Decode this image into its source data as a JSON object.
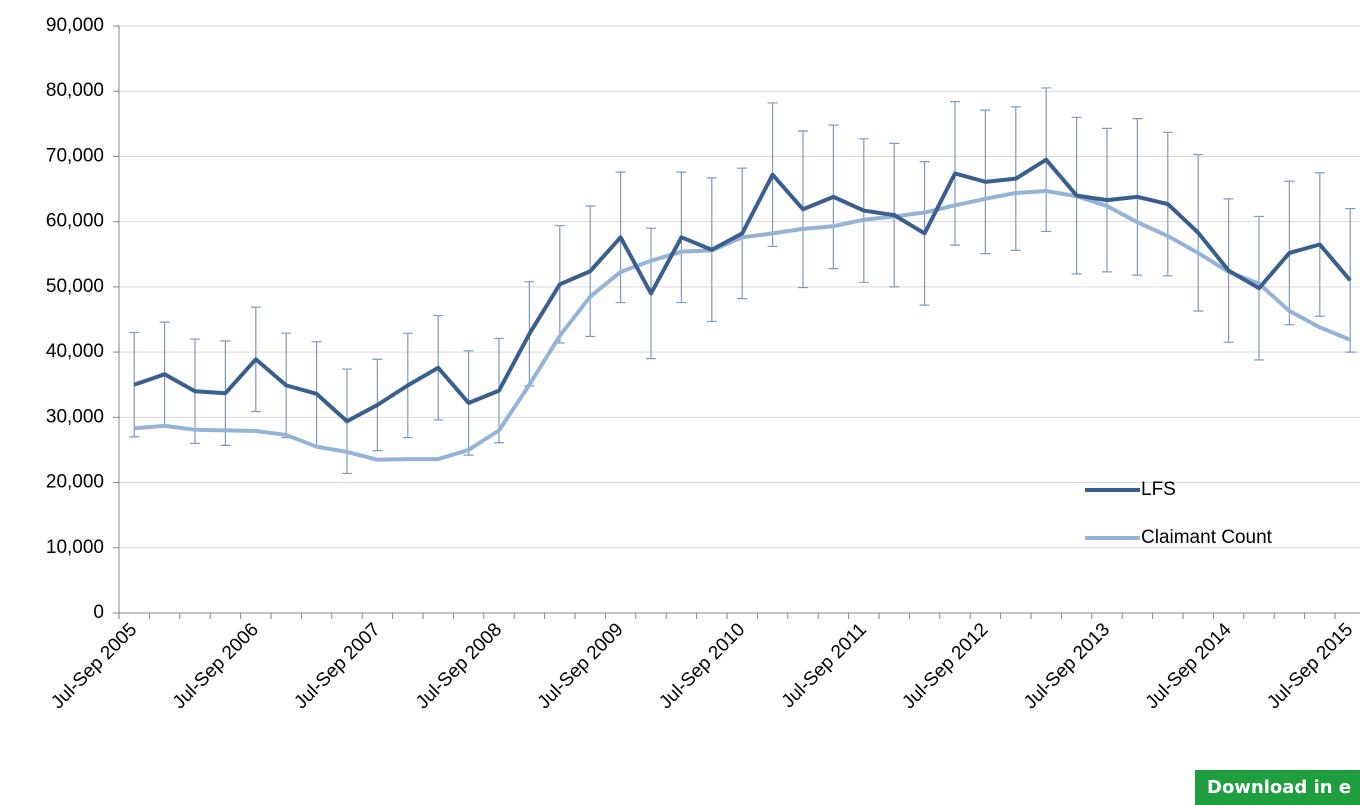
{
  "chart_data": {
    "type": "line",
    "categories": [
      "Jul-Sep 2005",
      null,
      null,
      null,
      "Jul-Sep 2006",
      null,
      null,
      null,
      "Jul-Sep 2007",
      null,
      null,
      null,
      "Jul-Sep 2008",
      null,
      null,
      null,
      "Jul-Sep 2009",
      null,
      null,
      null,
      "Jul-Sep 2010",
      null,
      null,
      null,
      "Jul-Sep 2011",
      null,
      null,
      null,
      "Jul-Sep 2012",
      null,
      null,
      null,
      "Jul-Sep 2013",
      null,
      null,
      null,
      "Jul-Sep 2014",
      null,
      null,
      null,
      "Jul-Sep 2015"
    ],
    "series": [
      {
        "name": "LFS",
        "color": "#3a5f8e",
        "values": [
          35000,
          36600,
          34000,
          33700,
          38900,
          34900,
          33600,
          29400,
          31900,
          34900,
          37600,
          32200,
          34100,
          42800,
          50400,
          52400,
          57600,
          49000,
          57600,
          55700,
          58200,
          67200,
          61900,
          63800,
          61700,
          61000,
          58200,
          67400,
          66100,
          66600,
          69500,
          64000,
          63300,
          63800,
          62700,
          58300,
          52500,
          49800,
          55200,
          56500,
          51000
        ],
        "errors": [
          8000,
          8000,
          8000,
          8000,
          8000,
          8000,
          8000,
          8000,
          7000,
          8000,
          8000,
          8000,
          8000,
          8000,
          9000,
          10000,
          10000,
          10000,
          10000,
          11000,
          10000,
          11000,
          12000,
          11000,
          11000,
          11000,
          11000,
          11000,
          11000,
          11000,
          11000,
          12000,
          11000,
          12000,
          11000,
          12000,
          11000,
          11000,
          11000,
          11000,
          11000
        ],
        "error_color": "#7f9bbb"
      },
      {
        "name": "Claimant Count",
        "color": "#95b3d7",
        "values": [
          28300,
          28700,
          28100,
          28000,
          27900,
          27300,
          25500,
          24700,
          23500,
          23600,
          23600,
          25000,
          28000,
          35000,
          42500,
          48500,
          52300,
          54000,
          55400,
          55600,
          57600,
          58200,
          58900,
          59300,
          60300,
          60800,
          61400,
          62500,
          63500,
          64400,
          64700,
          63900,
          62400,
          59900,
          57800,
          55200,
          52300,
          50500,
          46300,
          43800,
          41900
        ]
      }
    ],
    "ylim": [
      0,
      90000
    ],
    "yticks": [
      0,
      {
        "value": 10000,
        "label": "10,000"
      },
      {
        "value": 20000,
        "label": "20,000"
      },
      {
        "value": 30000,
        "label": "30,000"
      },
      {
        "value": 40000,
        "label": "40,000"
      },
      {
        "value": 50000,
        "label": "50,000"
      },
      {
        "value": 60000,
        "label": "60,000"
      },
      {
        "value": 70000,
        "label": "70,000"
      },
      {
        "value": 80000,
        "label": "80,000"
      },
      {
        "value": 90000,
        "label": "90,000"
      }
    ],
    "grid": true,
    "legend": "lower right"
  },
  "button": {
    "label": "Download in e"
  }
}
